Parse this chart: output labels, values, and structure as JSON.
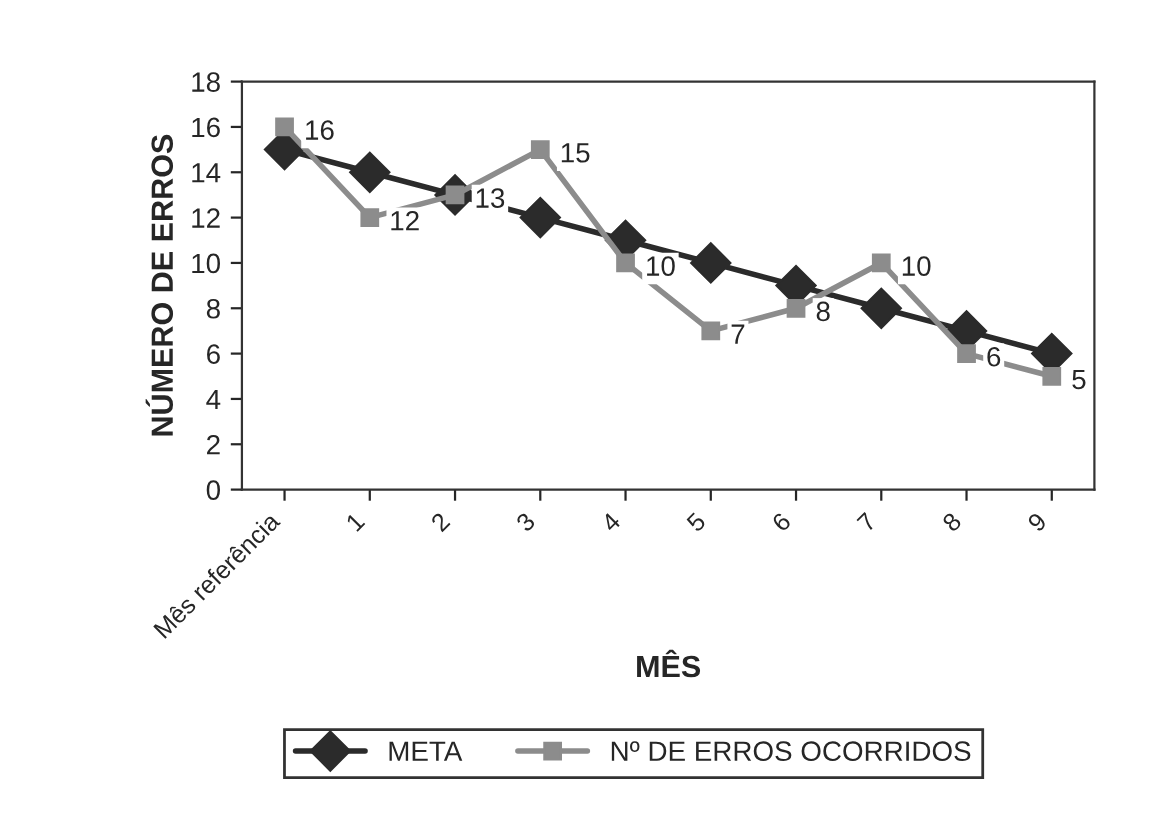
{
  "chart_data": {
    "type": "line",
    "xlabel": "MÊS",
    "ylabel": "NÚMERO DE ERROS",
    "categories": [
      "Mês referência",
      "1",
      "2",
      "3",
      "4",
      "5",
      "6",
      "7",
      "8",
      "9"
    ],
    "series": [
      {
        "name": "META",
        "color": "#2b2b2b",
        "marker": "diamond",
        "values": [
          15,
          14,
          13,
          12,
          11,
          10,
          9,
          8,
          7,
          6
        ]
      },
      {
        "name": "Nº DE ERROS OCORRIDOS",
        "color": "#8c8c8c",
        "marker": "square",
        "values": [
          16,
          12,
          13,
          15,
          10,
          7,
          8,
          10,
          6,
          5
        ],
        "value_labels": [
          "16",
          "12",
          "13",
          "15",
          "10",
          "7",
          "8",
          "10",
          "6",
          "5"
        ]
      }
    ],
    "ylim": [
      0,
      18
    ],
    "yticks": [
      0,
      2,
      4,
      6,
      8,
      10,
      12,
      14,
      16,
      18
    ],
    "grid": false,
    "legend": "bottom",
    "line_style": "solid"
  }
}
